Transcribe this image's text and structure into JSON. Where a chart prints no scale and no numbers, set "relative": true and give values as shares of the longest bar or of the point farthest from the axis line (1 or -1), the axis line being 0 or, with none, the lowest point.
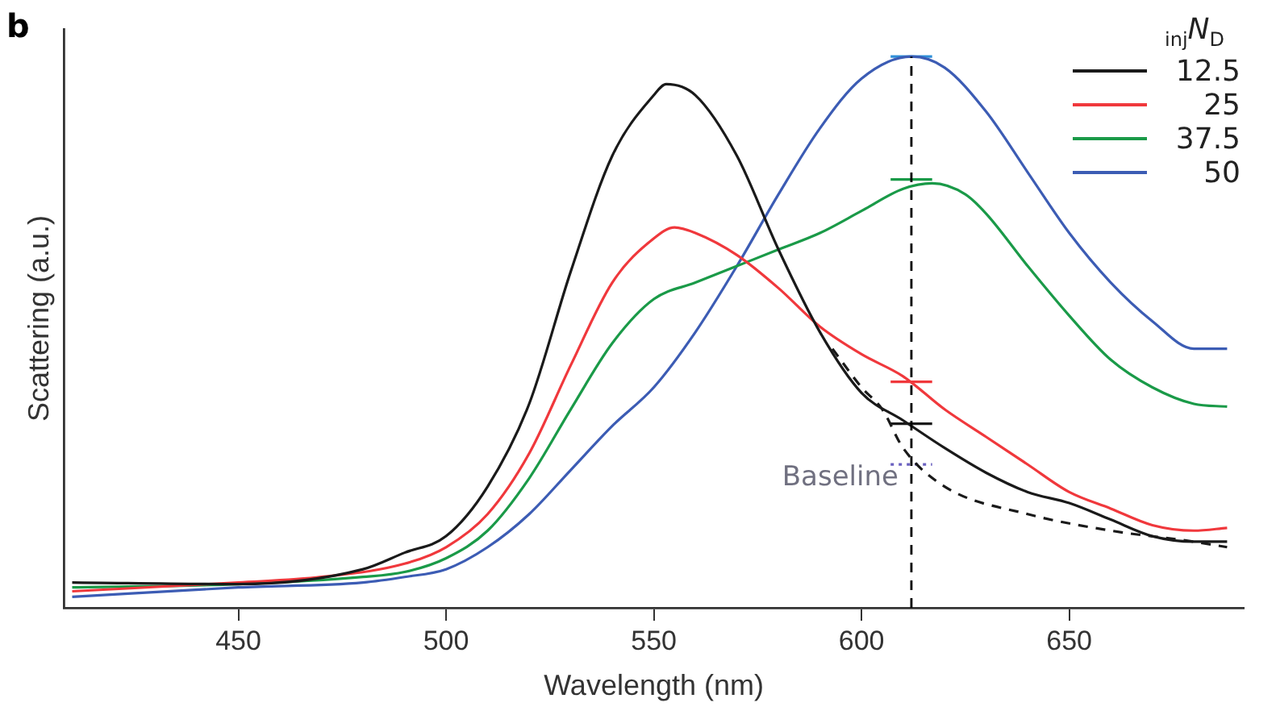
{
  "chart_data": {
    "type": "line",
    "xlabel": "Wavelength (nm)",
    "ylabel": "Scattering (a.u.)",
    "legend_title": "$_{inj}$N$_{D}$",
    "relative": true,
    "legend": "top right",
    "xlim": [
      408,
      692
    ],
    "xticks": [
      450,
      500,
      550,
      600,
      650
    ],
    "annotations": [
      "b",
      {
        "text": "Baseline",
        "x": 612,
        "y": 0.26
      }
    ],
    "ref_lines": [
      {
        "axis": "x",
        "value": 612,
        "color": "#000000",
        "line_style": "dashed"
      }
    ],
    "series": [
      {
        "name": "12.5",
        "color": "#1a1a1a",
        "x": [
          410,
          450,
          480,
          490,
          500,
          510,
          520,
          530,
          540,
          550,
          553,
          560,
          570,
          580,
          590,
          600,
          610,
          620,
          630,
          640,
          650,
          660,
          670,
          680,
          688
        ],
        "values": [
          0.046,
          0.043,
          0.07,
          0.1,
          0.13,
          0.22,
          0.37,
          0.61,
          0.82,
          0.93,
          0.95,
          0.93,
          0.82,
          0.65,
          0.5,
          0.39,
          0.34,
          0.29,
          0.245,
          0.21,
          0.19,
          0.16,
          0.13,
          0.12,
          0.12
        ]
      },
      {
        "name": "25",
        "color": "#f0383c",
        "x": [
          410,
          450,
          470,
          490,
          500,
          510,
          520,
          530,
          540,
          550,
          555,
          560,
          570,
          580,
          590,
          600,
          610,
          620,
          630,
          640,
          650,
          660,
          670,
          680,
          688
        ],
        "values": [
          0.03,
          0.046,
          0.056,
          0.08,
          0.11,
          0.17,
          0.28,
          0.44,
          0.59,
          0.67,
          0.69,
          0.68,
          0.64,
          0.58,
          0.51,
          0.46,
          0.42,
          0.36,
          0.31,
          0.26,
          0.21,
          0.18,
          0.15,
          0.14,
          0.145
        ]
      },
      {
        "name": "37.5",
        "color": "#1a9a48",
        "x": [
          410,
          450,
          480,
          490,
          500,
          510,
          520,
          530,
          540,
          550,
          560,
          570,
          580,
          590,
          600,
          610,
          617,
          625,
          630,
          640,
          650,
          660,
          670,
          680,
          688
        ],
        "values": [
          0.037,
          0.043,
          0.056,
          0.065,
          0.09,
          0.14,
          0.235,
          0.36,
          0.48,
          0.56,
          0.59,
          0.62,
          0.65,
          0.68,
          0.72,
          0.76,
          0.77,
          0.75,
          0.715,
          0.62,
          0.53,
          0.45,
          0.4,
          0.37,
          0.365
        ]
      },
      {
        "name": "50",
        "color": "#3c5cb4",
        "x": [
          410,
          450,
          480,
          490,
          500,
          510,
          520,
          530,
          540,
          550,
          560,
          570,
          580,
          590,
          600,
          612,
          620,
          630,
          640,
          650,
          660,
          670,
          680,
          688
        ],
        "values": [
          0.02,
          0.037,
          0.046,
          0.056,
          0.07,
          0.11,
          0.17,
          0.25,
          0.33,
          0.4,
          0.5,
          0.62,
          0.75,
          0.87,
          0.96,
          1,
          0.98,
          0.9,
          0.79,
          0.68,
          0.59,
          0.52,
          0.47,
          0.47
        ]
      },
      {
        "color": "#1a1a1a",
        "line_style": "dashed",
        "x": [
          593,
          600,
          605,
          610,
          620,
          640,
          660,
          680,
          688
        ],
        "values": [
          0.47,
          0.4,
          0.36,
          0.29,
          0.22,
          0.17,
          0.14,
          0.12,
          0.11
        ]
      },
      {
        "color": "#1a1a1a",
        "x": [
          607,
          617
        ],
        "values": [
          0.334,
          0.334
        ]
      },
      {
        "color": "#f0383c",
        "x": [
          607,
          617
        ],
        "values": [
          0.41,
          0.41
        ]
      },
      {
        "color": "#1a9a48",
        "x": [
          607,
          617
        ],
        "values": [
          0.777,
          0.777
        ]
      },
      {
        "color": "#2f8fd8",
        "x": [
          607,
          617
        ],
        "values": [
          1,
          1
        ]
      },
      {
        "color": "#6a60c0",
        "line_style": "dotted",
        "x": [
          607,
          617
        ],
        "values": [
          0.26,
          0.26
        ]
      }
    ]
  }
}
